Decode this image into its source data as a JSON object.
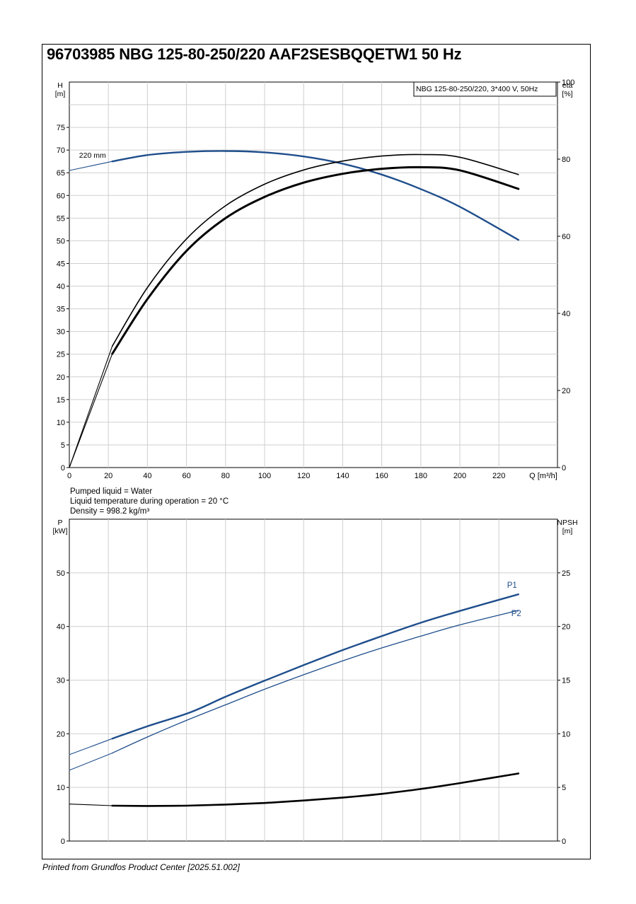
{
  "title": "96703985 NBG 125-80-250/220 AAF2SESBQQETW1 50 Hz",
  "footer": "Printed from Grundfos Product Center [2025.51.002]",
  "liquid_info": [
    "Pumped liquid = Water",
    "Liquid temperature during operation = 20 °C",
    "Density = 998.2 kg/m³"
  ],
  "colors": {
    "blue": "#1f4e8c",
    "black": "#000000",
    "grid": "#cfcfcf"
  },
  "chart_data": [
    {
      "type": "line",
      "legend": "NBG 125-80-250/220, 3*400 V, 50Hz",
      "x_label": "Q [m³/h]",
      "y_left_label": [
        "H",
        "[m]"
      ],
      "y_right_label": [
        "eta",
        "[%]"
      ],
      "xlim": [
        0,
        250
      ],
      "ylim_left": [
        0,
        85
      ],
      "ylim_right": [
        0,
        100
      ],
      "x_ticks": [
        0,
        20,
        40,
        60,
        80,
        100,
        120,
        140,
        160,
        180,
        200,
        220
      ],
      "y_left_ticks": [
        0,
        5,
        10,
        15,
        20,
        25,
        30,
        35,
        40,
        45,
        50,
        55,
        60,
        65,
        70,
        75
      ],
      "y_right_ticks": [
        0,
        20,
        40,
        60,
        80,
        100
      ],
      "annotations": [
        {
          "text": "220 mm",
          "x": 5,
          "y": 67.5
        }
      ],
      "series": [
        {
          "name": "220 mm",
          "axis": "left",
          "color": "#1f4e8c",
          "width": 2.4,
          "dash_extension_end": 22,
          "x": [
            0,
            22,
            40,
            60,
            80,
            100,
            120,
            140,
            160,
            180,
            200,
            230
          ],
          "y": [
            65.5,
            67.5,
            68.9,
            69.6,
            69.8,
            69.5,
            68.6,
            67.0,
            64.6,
            61.4,
            57.5,
            50.2
          ]
        },
        {
          "axis": "right",
          "color": "#000000",
          "width": 1.6,
          "dash_extension_end": 22,
          "x": [
            0,
            22,
            40,
            60,
            80,
            100,
            120,
            140,
            160,
            180,
            200,
            230
          ],
          "y": [
            0,
            31.5,
            46.7,
            59.3,
            67.9,
            73.5,
            77.2,
            79.5,
            80.8,
            81.2,
            80.5,
            76.0
          ]
        },
        {
          "axis": "right",
          "color": "#000000",
          "width": 3.0,
          "dash_extension_end": 22,
          "x": [
            0,
            22,
            40,
            60,
            80,
            100,
            120,
            140,
            160,
            180,
            200,
            230
          ],
          "y": [
            0,
            29.5,
            43.7,
            56.2,
            64.7,
            70.2,
            73.9,
            76.2,
            77.5,
            77.9,
            77.1,
            72.3
          ]
        }
      ]
    },
    {
      "type": "line",
      "y_left_label": [
        "P",
        "[kW]"
      ],
      "y_right_label": [
        "NPSH",
        "[m]"
      ],
      "xlim": [
        0,
        250
      ],
      "ylim_left": [
        0,
        60
      ],
      "ylim_right": [
        0,
        30
      ],
      "x_ticks": [
        0,
        20,
        40,
        60,
        80,
        100,
        120,
        140,
        160,
        180,
        200,
        220
      ],
      "y_left_ticks": [
        0,
        10,
        20,
        30,
        40,
        50
      ],
      "y_right_ticks": [
        0,
        5,
        10,
        15,
        20,
        25
      ],
      "series": [
        {
          "name": "P1",
          "axis": "left",
          "color": "#1f4e8c",
          "width": 2.4,
          "dash_extension_end": 22,
          "x": [
            0,
            22,
            40,
            62,
            80,
            100,
            120,
            140,
            160,
            180,
            200,
            230
          ],
          "y": [
            16.1,
            19.1,
            21.4,
            24.0,
            26.9,
            29.9,
            32.8,
            35.6,
            38.2,
            40.7,
            42.9,
            46.0
          ]
        },
        {
          "name": "P2",
          "axis": "left",
          "color": "#1f4e8c",
          "width": 1.3,
          "dash_extension_end": 22,
          "x": [
            0,
            22,
            40,
            60,
            80,
            100,
            120,
            140,
            160,
            180,
            200,
            230
          ],
          "y": [
            13.2,
            16.4,
            19.4,
            22.5,
            25.4,
            28.3,
            31.0,
            33.6,
            36.0,
            38.2,
            40.3,
            43.0
          ]
        },
        {
          "axis": "right",
          "color": "#000000",
          "width": 2.6,
          "dash_extension_end": 22,
          "x": [
            0,
            22,
            40,
            60,
            80,
            100,
            120,
            140,
            160,
            180,
            200,
            230
          ],
          "y": [
            3.45,
            3.3,
            3.27,
            3.3,
            3.4,
            3.55,
            3.78,
            4.05,
            4.4,
            4.85,
            5.4,
            6.3
          ]
        }
      ]
    }
  ]
}
